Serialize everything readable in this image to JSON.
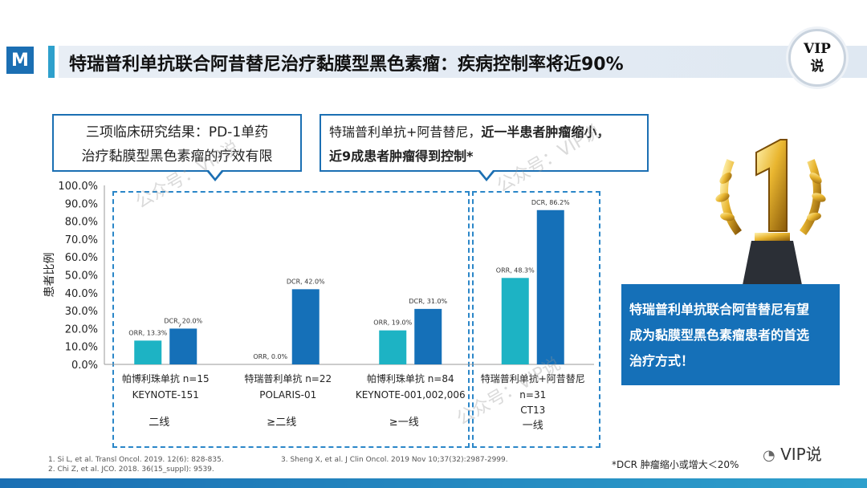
{
  "title": "特瑞普利单抗联合阿昔替尼治疗黏膜型黑色素瘤：疾病控制率将近90%",
  "logo_letter": "M",
  "vip_badge": {
    "line1": "VIP",
    "line2": "说"
  },
  "callout_left": {
    "line1": "三项临床研究结果：PD-1单药",
    "line2": "治疗黏膜型黑色素瘤的疗效有限"
  },
  "callout_right": {
    "line1_plain": "特瑞普利单抗+阿昔替尼，",
    "line1_bold": "近一半患者肿瘤缩小，",
    "line2_bold": "近9成患者肿瘤得到控制*"
  },
  "highlight_box": {
    "line1": "特瑞普利单抗联合阿昔替尼有望",
    "line2": "成为黏膜型黑色素瘤患者的首选",
    "line3": "治疗方式！"
  },
  "footnotes": {
    "f1": "1.  Si L, et al. Transl Oncol. 2019. 12(6): 828-835.",
    "f2": "2.  Chi Z, et al. JCO. 2018. 36(15_suppl): 9539.",
    "f3": "3.  Sheng X, et al. J Clin Oncol. 2019 Nov 10;37(32):2987-2999."
  },
  "dcr_note": "*DCR 肿瘤缩小或增大＜20%",
  "wechat_label": "VIP说",
  "watermark": "公众号：VIP说",
  "colors": {
    "orr": "#1db3c4",
    "dcr": "#1570b8",
    "accent": "#2ea0cc",
    "box": "#1570b8"
  },
  "chart_data": {
    "type": "bar",
    "ylabel": "患者比例",
    "ylim": [
      0,
      100
    ],
    "yticks": [
      "0.0%",
      "10.0%",
      "20.0%",
      "30.0%",
      "40.0%",
      "50.0%",
      "60.0%",
      "70.0%",
      "80.0%",
      "90.0%",
      "100.0%"
    ],
    "groups": [
      {
        "drug": "帕博利珠单抗 n=15",
        "study": "KEYNOTE-151",
        "extra": "",
        "line": "二线",
        "bars": [
          {
            "metric": "ORR",
            "value": 13.3,
            "label": "ORR, 13.3%"
          },
          {
            "metric": "DCR",
            "value": 20.0,
            "label": "DCR, 20.0%"
          }
        ]
      },
      {
        "drug": "特瑞普利单抗 n=22",
        "study": "POLARIS-01",
        "extra": "",
        "line": "≥二线",
        "bars": [
          {
            "metric": "ORR",
            "value": 0.0,
            "label": "ORR, 0.0%"
          },
          {
            "metric": "DCR",
            "value": 42.0,
            "label": "DCR, 42.0%"
          }
        ]
      },
      {
        "drug": "帕博利珠单抗 n=84",
        "study": "KEYNOTE-001,002,006",
        "extra": "",
        "line": "≥一线",
        "bars": [
          {
            "metric": "ORR",
            "value": 19.0,
            "label": "ORR, 19.0%"
          },
          {
            "metric": "DCR",
            "value": 31.0,
            "label": "DCR, 31.0%"
          }
        ]
      },
      {
        "drug": "特瑞普利单抗+阿昔替尼",
        "study": "n=31",
        "extra": "CT13",
        "line": "一线",
        "bars": [
          {
            "metric": "ORR",
            "value": 48.3,
            "label": "ORR, 48.3%"
          },
          {
            "metric": "DCR",
            "value": 86.2,
            "label": "DCR, 86.2%"
          }
        ]
      }
    ]
  }
}
